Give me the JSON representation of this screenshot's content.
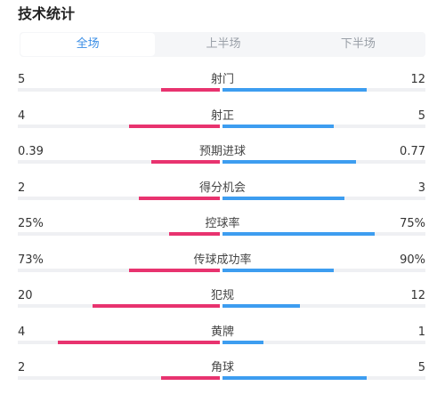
{
  "title": "技术统计",
  "tabs": [
    "全场",
    "上半场",
    "下半场"
  ],
  "active_tab": 0,
  "colors": {
    "home": "#e8336f",
    "away": "#3d9df0",
    "accent": "#3a8ee6"
  },
  "stats": [
    {
      "label": "射门",
      "home": "5",
      "away": "12",
      "home_frac": 0.29,
      "away_frac": 0.71
    },
    {
      "label": "射正",
      "home": "4",
      "away": "5",
      "home_frac": 0.45,
      "away_frac": 0.55
    },
    {
      "label": "预期进球",
      "home": "0.39",
      "away": "0.77",
      "home_frac": 0.34,
      "away_frac": 0.66
    },
    {
      "label": "得分机会",
      "home": "2",
      "away": "3",
      "home_frac": 0.4,
      "away_frac": 0.6
    },
    {
      "label": "控球率",
      "home": "25%",
      "away": "75%",
      "home_frac": 0.25,
      "away_frac": 0.75
    },
    {
      "label": "传球成功率",
      "home": "73%",
      "away": "90%",
      "home_frac": 0.45,
      "away_frac": 0.55
    },
    {
      "label": "犯规",
      "home": "20",
      "away": "12",
      "home_frac": 0.63,
      "away_frac": 0.38
    },
    {
      "label": "黄牌",
      "home": "4",
      "away": "1",
      "home_frac": 0.8,
      "away_frac": 0.2
    },
    {
      "label": "角球",
      "home": "2",
      "away": "5",
      "home_frac": 0.29,
      "away_frac": 0.71
    }
  ]
}
